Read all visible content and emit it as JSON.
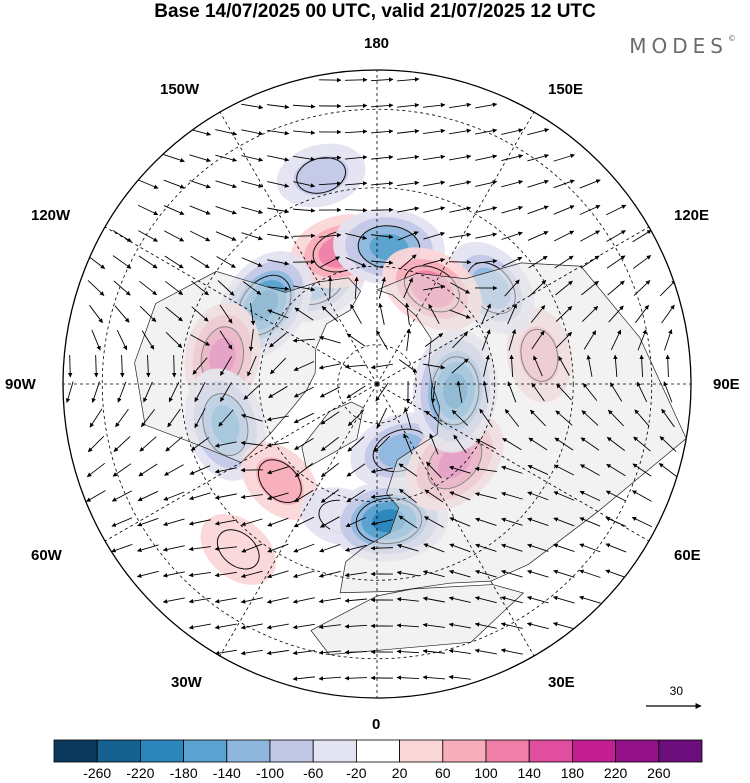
{
  "title": "Base 14/07/2025 00 UTC, valid 21/07/2025 12 UTC",
  "brand": "MODES",
  "brand_mark": "©",
  "longitude_labels": {
    "lon_180": "180",
    "lon_150w": "150W",
    "lon_150e": "150E",
    "lon_120w": "120W",
    "lon_120e": "120E",
    "lon_90w": "90W",
    "lon_90e": "90E",
    "lon_60w": "60W",
    "lon_60e": "60E",
    "lon_30w": "30W",
    "lon_30e": "30E",
    "lon_0": "0"
  },
  "vector_reference": {
    "label": "30"
  },
  "colorbar": {
    "labels": [
      "-260",
      "-220",
      "-180",
      "-140",
      "-100",
      "-60",
      "-20",
      "20",
      "60",
      "100",
      "140",
      "180",
      "220",
      "260"
    ],
    "colors": [
      "#0d3a5c",
      "#15618f",
      "#2b86bc",
      "#5aa2cf",
      "#8fb7de",
      "#c2c8e6",
      "#e4e3f1",
      "#ffffff",
      "#fbd6d8",
      "#f7aeba",
      "#f07fa8",
      "#e24e9f",
      "#c41f92",
      "#931187",
      "#6b0d7a"
    ]
  },
  "map": {
    "projection": "north-polar-stereographic",
    "anomalies": [
      {
        "lon": -150,
        "lat": 60,
        "value": -120
      },
      {
        "lon": -165,
        "lat": 55,
        "value": 120
      },
      {
        "lon": 175,
        "lat": 55,
        "value": -150
      },
      {
        "lon": -125,
        "lat": 55,
        "value": -180
      },
      {
        "lon": -100,
        "lat": 50,
        "value": 140
      },
      {
        "lon": -75,
        "lat": 50,
        "value": -160
      },
      {
        "lon": -45,
        "lat": 55,
        "value": 60
      },
      {
        "lon": -15,
        "lat": 55,
        "value": -30
      },
      {
        "lon": 5,
        "lat": 55,
        "value": -180
      },
      {
        "lon": 20,
        "lat": 72,
        "value": -120
      },
      {
        "lon": 45,
        "lat": 62,
        "value": 160
      },
      {
        "lon": 85,
        "lat": 70,
        "value": -200
      },
      {
        "lon": 100,
        "lat": 48,
        "value": 80
      },
      {
        "lon": 130,
        "lat": 52,
        "value": -120
      },
      {
        "lon": 150,
        "lat": 62,
        "value": 130
      },
      {
        "lon": -165,
        "lat": 35,
        "value": -60
      },
      {
        "lon": -40,
        "lat": 35,
        "value": 40
      }
    ]
  }
}
